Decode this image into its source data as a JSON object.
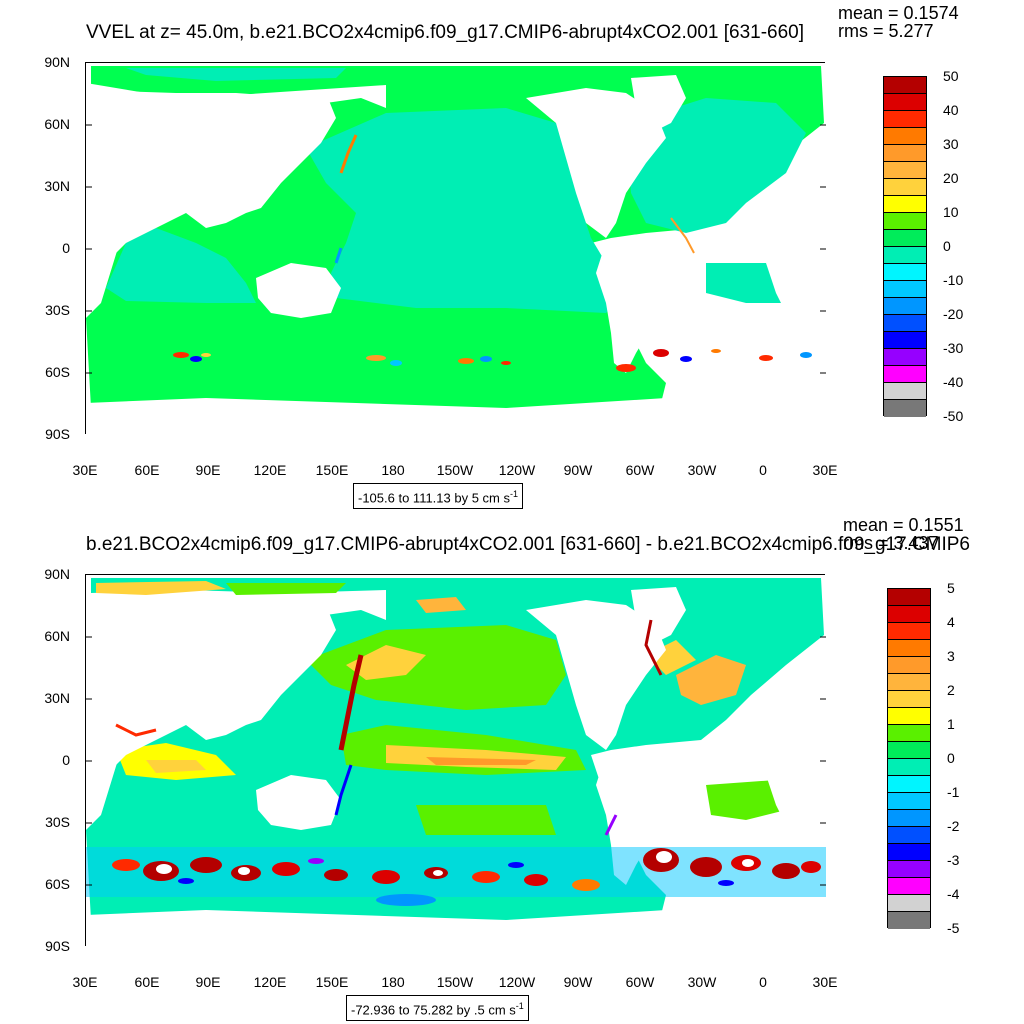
{
  "palette": [
    "#b40000",
    "#dc0000",
    "#ff2a00",
    "#ff7a00",
    "#ff9a2a",
    "#ffb43c",
    "#ffd23c",
    "#ffff00",
    "#5af000",
    "#00ec5a",
    "#00eeb4",
    "#00f5ff",
    "#00c8ff",
    "#0096ff",
    "#0050ff",
    "#0000ff",
    "#9600ff",
    "#ff00ff",
    "#d2d2d2",
    "#787878"
  ],
  "lat_labels": [
    "90N",
    "60N",
    "30N",
    "0",
    "30S",
    "60S",
    "90S"
  ],
  "lon_labels": [
    "30E",
    "60E",
    "90E",
    "120E",
    "150E",
    "180",
    "150W",
    "120W",
    "90W",
    "60W",
    "30W",
    "0",
    "30E"
  ],
  "colors": {
    "ocean_top": "#00ff50",
    "land": "#ffffff",
    "frame": "#000000"
  },
  "panels": [
    {
      "title": "VVEL at z=  45.0m, b.e21.BCO2x4cmip6.f09_g17.CMIP6-abrupt4xCO2.001 [631-660]",
      "mean": "mean = 0.1574",
      "rms": "rms = 5.277",
      "range_text": "-105.6 to 111.13 by 5 cm s",
      "range_unit_exp": "-1",
      "colorbar_labels": [
        "50",
        "40",
        "30",
        "20",
        "10",
        "0",
        "-10",
        "-20",
        "-30",
        "-40",
        "-50"
      ]
    },
    {
      "title": "b.e21.BCO2x4cmip6.f09_g17.CMIP6-abrupt4xCO2.001 [631-660] - b.e21.BCO2x4cmip6.f09_g17.CMIP6",
      "mean": "mean = 0.1551",
      "rms": "rms = 3.437",
      "range_text": "-72.936 to 75.282 by .5 cm s",
      "range_unit_exp": "-1",
      "colorbar_labels": [
        "5",
        "4",
        "3",
        "2",
        "1",
        "0",
        "-1",
        "-2",
        "-3",
        "-4",
        "-5"
      ]
    }
  ]
}
